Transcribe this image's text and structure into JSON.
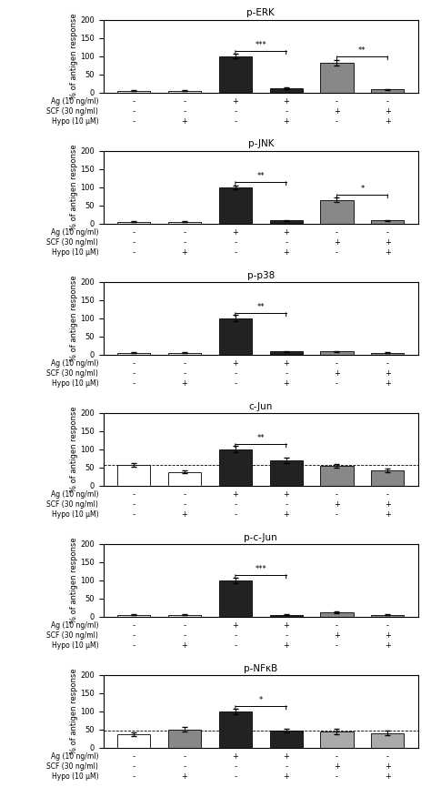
{
  "chart_data": [
    {
      "type": "bar",
      "title": "p-ERK",
      "y_label": "% of antigen response",
      "categories": [
        "-\n-\n-",
        "-\n-\n+",
        "+\n-\n-",
        "+\n-\n+",
        "-\n+\n-",
        "-\n+\n+"
      ],
      "annotations": [
        "Ag (10 ng/ml)",
        "SCF (30 ng/ml)",
        "Hypo (10 μM)"
      ],
      "values": [
        5,
        5,
        100,
        12,
        82,
        8
      ],
      "colors": [
        "#dddddd",
        "#dddddd",
        "#222222",
        "#222222",
        "#888888",
        "#888888"
      ],
      "errors": [
        1,
        1,
        6,
        2,
        8,
        2
      ],
      "significance": [
        {
          "x1": 2,
          "x2": 3,
          "y": 115,
          "text": "***"
        },
        {
          "x1": 4,
          "x2": 5,
          "y": 100,
          "text": "**"
        }
      ],
      "ylim": [
        0,
        200
      ],
      "yticks": [
        0,
        50,
        100,
        150,
        200
      ]
    },
    {
      "type": "bar",
      "title": "p-JNK",
      "y_label": "% of antigen response",
      "categories": [
        "-\n-\n-",
        "-\n-\n+",
        "+\n-\n-",
        "+\n-\n+",
        "-\n+\n-",
        "-\n+\n+"
      ],
      "annotations": [
        "Ag (10 ng/ml)",
        "SCF (30 ng/ml)",
        "Hypo (10 μM)"
      ],
      "values": [
        5,
        5,
        100,
        8,
        65,
        8
      ],
      "colors": [
        "#dddddd",
        "#dddddd",
        "#222222",
        "#222222",
        "#888888",
        "#888888"
      ],
      "errors": [
        1,
        1,
        5,
        1,
        7,
        1
      ],
      "significance": [
        {
          "x1": 2,
          "x2": 3,
          "y": 115,
          "text": "**"
        },
        {
          "x1": 4,
          "x2": 5,
          "y": 80,
          "text": "*"
        }
      ],
      "ylim": [
        0,
        200
      ],
      "yticks": [
        0,
        50,
        100,
        150,
        200
      ]
    },
    {
      "type": "bar",
      "title": "p-p38",
      "y_label": "% of antigen response",
      "categories": [
        "-\n-\n-",
        "-\n-\n+",
        "+\n-\n-",
        "+\n-\n+",
        "-\n+\n-",
        "-\n+\n+"
      ],
      "annotations": [
        "Ag (10 ng/ml)",
        "SCF (30 ng/ml)",
        "Hypo (10 μM)"
      ],
      "values": [
        5,
        5,
        100,
        8,
        8,
        5
      ],
      "colors": [
        "#dddddd",
        "#dddddd",
        "#222222",
        "#222222",
        "#888888",
        "#888888"
      ],
      "errors": [
        1,
        1,
        8,
        1,
        2,
        1
      ],
      "significance": [
        {
          "x1": 2,
          "x2": 3,
          "y": 115,
          "text": "**"
        }
      ],
      "ylim": [
        0,
        200
      ],
      "yticks": [
        0,
        50,
        100,
        150,
        200
      ]
    },
    {
      "type": "bar",
      "title": "c-Jun",
      "y_label": "% of antigen response",
      "categories": [
        "-\n-\n-",
        "-\n-\n+",
        "+\n-\n-",
        "+\n-\n+",
        "-\n+\n-",
        "-\n+\n+"
      ],
      "annotations": [
        "Ag (10 ng/ml)",
        "SCF (30 ng/ml)",
        "Hypo (10 μM)"
      ],
      "values": [
        58,
        38,
        100,
        70,
        55,
        42
      ],
      "colors": [
        "#ffffff",
        "#ffffff",
        "#222222",
        "#222222",
        "#888888",
        "#888888"
      ],
      "errors": [
        5,
        4,
        8,
        7,
        5,
        4
      ],
      "reference_line": 58,
      "significance": [
        {
          "x1": 2,
          "x2": 3,
          "y": 115,
          "text": "**"
        }
      ],
      "ylim": [
        0,
        200
      ],
      "yticks": [
        0,
        50,
        100,
        150,
        200
      ]
    },
    {
      "type": "bar",
      "title": "p-c-Jun",
      "y_label": "% of antigen response",
      "categories": [
        "-\n-\n-",
        "-\n-\n+",
        "+\n-\n-",
        "+\n-\n+",
        "-\n+\n-",
        "-\n+\n+"
      ],
      "annotations": [
        "Ag (10 ng/ml)",
        "SCF (30 ng/ml)",
        "Hypo (10 μM)"
      ],
      "values": [
        5,
        5,
        100,
        5,
        12,
        5
      ],
      "colors": [
        "#dddddd",
        "#dddddd",
        "#222222",
        "#222222",
        "#888888",
        "#888888"
      ],
      "errors": [
        1,
        1,
        7,
        1,
        3,
        1
      ],
      "significance": [
        {
          "x1": 2,
          "x2": 3,
          "y": 115,
          "text": "***"
        }
      ],
      "ylim": [
        0,
        200
      ],
      "yticks": [
        0,
        50,
        100,
        150,
        200
      ]
    },
    {
      "type": "bar",
      "title": "p-NFκB",
      "y_label": "% of antigen response",
      "categories": [
        "-\n-\n-",
        "-\n-\n+",
        "+\n-\n-",
        "+\n-\n+",
        "-\n+\n-",
        "-\n+\n+"
      ],
      "annotations": [
        "Ag (10 ng/ml)",
        "SCF (30 ng/ml)",
        "Hypo (10 μM)"
      ],
      "values": [
        38,
        50,
        100,
        48,
        45,
        40
      ],
      "colors": [
        "#ffffff",
        "#888888",
        "#222222",
        "#222222",
        "#aaaaaa",
        "#aaaaaa"
      ],
      "errors": [
        5,
        6,
        8,
        5,
        7,
        6
      ],
      "reference_line": 48,
      "significance": [
        {
          "x1": 2,
          "x2": 3,
          "y": 115,
          "text": "*"
        }
      ],
      "ylim": [
        0,
        200
      ],
      "yticks": [
        0,
        50,
        100,
        150,
        200
      ]
    }
  ]
}
